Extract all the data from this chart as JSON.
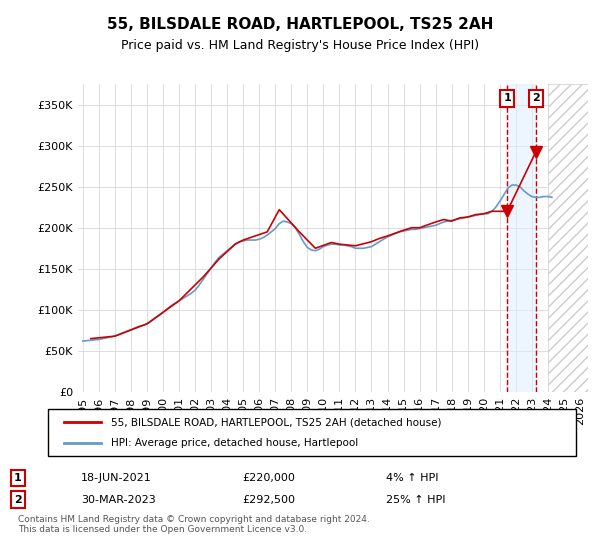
{
  "title": "55, BILSDALE ROAD, HARTLEPOOL, TS25 2AH",
  "subtitle": "Price paid vs. HM Land Registry's House Price Index (HPI)",
  "legend_line1": "55, BILSDALE ROAD, HARTLEPOOL, TS25 2AH (detached house)",
  "legend_line2": "HPI: Average price, detached house, Hartlepool",
  "annotation1": {
    "num": "1",
    "date": "18-JUN-2021",
    "price": "£220,000",
    "pct": "4% ↑ HPI"
  },
  "annotation2": {
    "num": "2",
    "date": "30-MAR-2023",
    "price": "£292,500",
    "pct": "25% ↑ HPI"
  },
  "footer": "Contains HM Land Registry data © Crown copyright and database right 2024.\nThis data is licensed under the Open Government Licence v3.0.",
  "price_color": "#cc0000",
  "hpi_color": "#6699cc",
  "hpi_shade_color": "#ddeeff",
  "marker_color": "#cc0000",
  "dashed_line_color": "#cc0000",
  "hatch_color": "#cccccc",
  "ylim": [
    0,
    375000
  ],
  "yticks": [
    0,
    50000,
    100000,
    150000,
    200000,
    250000,
    300000,
    350000
  ],
  "xlim_start": 1995.0,
  "xlim_end": 2026.5,
  "xticks": [
    1995,
    1996,
    1997,
    1998,
    1999,
    2000,
    2001,
    2002,
    2003,
    2004,
    2005,
    2006,
    2007,
    2008,
    2009,
    2010,
    2011,
    2012,
    2013,
    2014,
    2015,
    2016,
    2017,
    2018,
    2019,
    2020,
    2021,
    2022,
    2023,
    2024,
    2025,
    2026
  ],
  "marker1_x": 2021.46,
  "marker1_y": 220000,
  "marker2_x": 2023.25,
  "marker2_y": 292500,
  "shade_x1": 2021.46,
  "shade_x2": 2023.25,
  "hatch_x": 2024.5,
  "hpi_data": {
    "years": [
      1995.0,
      1995.25,
      1995.5,
      1995.75,
      1996.0,
      1996.25,
      1996.5,
      1996.75,
      1997.0,
      1997.25,
      1997.5,
      1997.75,
      1998.0,
      1998.25,
      1998.5,
      1998.75,
      1999.0,
      1999.25,
      1999.5,
      1999.75,
      2000.0,
      2000.25,
      2000.5,
      2000.75,
      2001.0,
      2001.25,
      2001.5,
      2001.75,
      2002.0,
      2002.25,
      2002.5,
      2002.75,
      2003.0,
      2003.25,
      2003.5,
      2003.75,
      2004.0,
      2004.25,
      2004.5,
      2004.75,
      2005.0,
      2005.25,
      2005.5,
      2005.75,
      2006.0,
      2006.25,
      2006.5,
      2006.75,
      2007.0,
      2007.25,
      2007.5,
      2007.75,
      2008.0,
      2008.25,
      2008.5,
      2008.75,
      2009.0,
      2009.25,
      2009.5,
      2009.75,
      2010.0,
      2010.25,
      2010.5,
      2010.75,
      2011.0,
      2011.25,
      2011.5,
      2011.75,
      2012.0,
      2012.25,
      2012.5,
      2012.75,
      2013.0,
      2013.25,
      2013.5,
      2013.75,
      2014.0,
      2014.25,
      2014.5,
      2014.75,
      2015.0,
      2015.25,
      2015.5,
      2015.75,
      2016.0,
      2016.25,
      2016.5,
      2016.75,
      2017.0,
      2017.25,
      2017.5,
      2017.75,
      2018.0,
      2018.25,
      2018.5,
      2018.75,
      2019.0,
      2019.25,
      2019.5,
      2019.75,
      2020.0,
      2020.25,
      2020.5,
      2020.75,
      2021.0,
      2021.25,
      2021.5,
      2021.75,
      2022.0,
      2022.25,
      2022.5,
      2022.75,
      2023.0,
      2023.25,
      2023.5,
      2023.75,
      2024.0,
      2024.25
    ],
    "values": [
      62000,
      62500,
      63000,
      63500,
      64000,
      65000,
      66000,
      67000,
      68000,
      70000,
      72000,
      74000,
      76000,
      78000,
      80000,
      81000,
      83000,
      86000,
      90000,
      93000,
      97000,
      101000,
      105000,
      108000,
      111000,
      114000,
      117000,
      120000,
      124000,
      130000,
      137000,
      144000,
      151000,
      158000,
      164000,
      168000,
      172000,
      176000,
      180000,
      183000,
      184000,
      185000,
      185000,
      185000,
      186000,
      188000,
      191000,
      195000,
      199000,
      205000,
      208000,
      207000,
      205000,
      200000,
      192000,
      183000,
      176000,
      173000,
      172000,
      174000,
      177000,
      179000,
      180000,
      180000,
      179000,
      179000,
      178000,
      177000,
      175000,
      175000,
      175000,
      176000,
      177000,
      180000,
      183000,
      186000,
      189000,
      191000,
      193000,
      195000,
      196000,
      197000,
      198000,
      198000,
      199000,
      200000,
      201000,
      202000,
      203000,
      205000,
      207000,
      208000,
      209000,
      210000,
      211000,
      212000,
      213000,
      214000,
      215000,
      216000,
      217000,
      217000,
      220000,
      225000,
      232000,
      240000,
      248000,
      252000,
      252000,
      250000,
      245000,
      241000,
      238000,
      237000,
      237000,
      238000,
      238000,
      237000
    ]
  },
  "price_data": {
    "years": [
      1995.5,
      1997.0,
      1999.0,
      2001.0,
      2002.5,
      2003.5,
      2004.5,
      2005.0,
      2006.5,
      2007.25,
      2008.5,
      2009.5,
      2010.5,
      2011.0,
      2012.0,
      2013.0,
      2013.5,
      2014.0,
      2015.0,
      2015.5,
      2016.0,
      2017.0,
      2017.5,
      2018.0,
      2018.5,
      2019.0,
      2019.5,
      2020.0,
      2020.5,
      2021.46,
      2023.25
    ],
    "values": [
      65000,
      68000,
      83000,
      111000,
      140000,
      162000,
      180000,
      185000,
      195000,
      222000,
      195000,
      175000,
      182000,
      180000,
      178000,
      183000,
      187000,
      190000,
      197000,
      200000,
      200000,
      207000,
      210000,
      208000,
      212000,
      213000,
      216000,
      217000,
      220000,
      220000,
      292500
    ]
  }
}
